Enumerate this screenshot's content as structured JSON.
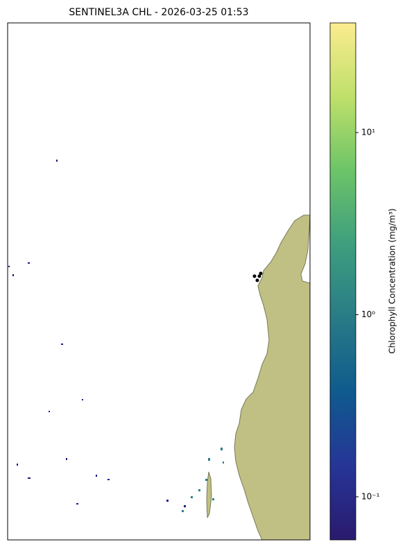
{
  "chart_data": {
    "type": "colorbar-map",
    "title": "SENTINEL3A CHL - 2026-03-25 01:53",
    "colorbar_label": "Chlorophyll Concentration (mg/m³)",
    "log_scale": true,
    "clim": [
      0.058,
      40
    ],
    "cticks": [
      {
        "value": 0.1,
        "label": "10⁻¹"
      },
      {
        "value": 1,
        "label": "10⁰"
      },
      {
        "value": 10,
        "label": "10¹"
      }
    ],
    "colormap": [
      "#2a1a6e",
      "#263597",
      "#0f5a8e",
      "#287b86",
      "#3e9e7e",
      "#6cc468",
      "#bfe06a",
      "#fbec90"
    ]
  }
}
